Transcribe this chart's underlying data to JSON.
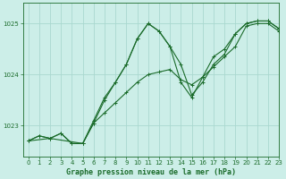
{
  "title": "Graphe pression niveau de la mer (hPa)",
  "bg_color": "#cceee8",
  "grid_color": "#aad8d0",
  "line_color": "#1a6b2a",
  "xlim": [
    -0.5,
    23
  ],
  "ylim": [
    1022.4,
    1025.4
  ],
  "yticks": [
    1023,
    1024,
    1025
  ],
  "xticks": [
    0,
    1,
    2,
    3,
    4,
    5,
    6,
    7,
    8,
    9,
    10,
    11,
    12,
    13,
    14,
    15,
    16,
    17,
    18,
    19,
    20,
    21,
    22,
    23
  ],
  "series1_x": [
    0,
    1,
    2,
    3,
    4,
    5,
    6,
    7,
    8,
    9,
    10,
    11,
    12,
    13,
    14,
    15,
    16,
    17,
    18,
    19,
    20,
    21,
    22,
    23
  ],
  "series1_y": [
    1022.7,
    1022.8,
    1022.75,
    1022.85,
    1022.65,
    1022.65,
    1023.05,
    1023.25,
    1023.45,
    1023.65,
    1023.85,
    1024.0,
    1024.05,
    1024.1,
    1023.9,
    1023.8,
    1023.95,
    1024.15,
    1024.35,
    1024.55,
    1024.95,
    1025.0,
    1025.0,
    1024.85
  ],
  "series2_x": [
    0,
    1,
    2,
    3,
    4,
    5,
    6,
    7,
    8,
    9,
    10,
    11,
    12,
    13,
    14,
    15,
    16,
    17,
    18,
    19,
    20,
    21,
    22,
    23
  ],
  "series2_y": [
    1022.7,
    1022.8,
    1022.75,
    1022.85,
    1022.65,
    1022.65,
    1023.1,
    1023.55,
    1023.85,
    1024.2,
    1024.7,
    1025.0,
    1024.85,
    1024.55,
    1024.2,
    1023.6,
    1023.85,
    1024.2,
    1024.4,
    1024.8,
    1025.0,
    1025.05,
    1025.05,
    1024.9
  ],
  "series3_x": [
    0,
    2,
    5,
    6,
    7,
    8,
    9,
    10,
    11,
    12,
    13,
    14,
    15,
    16,
    17,
    18,
    19,
    20,
    21,
    22,
    23
  ],
  "series3_y": [
    1022.7,
    1022.75,
    1022.65,
    1023.05,
    1023.5,
    1023.85,
    1024.2,
    1024.7,
    1025.0,
    1024.85,
    1024.55,
    1023.85,
    1023.55,
    1023.95,
    1024.35,
    1024.5,
    1024.8,
    1025.0,
    1025.05,
    1025.05,
    1024.9
  ]
}
